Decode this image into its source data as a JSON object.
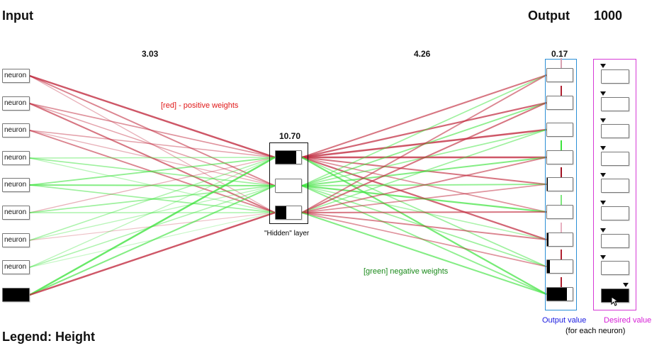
{
  "titles": {
    "input": "Input",
    "output": "Output",
    "iteration": "1000",
    "legend": "Legend: Height"
  },
  "layer_values": {
    "input_hidden": "3.03",
    "hidden_output": "4.26",
    "hidden": "10.70",
    "output": "0.17"
  },
  "annotations": {
    "positive": "[red] - positive weights",
    "negative": "[green] negative weights",
    "hidden_layer": "\"Hidden\" layer",
    "output_value": "Output value",
    "desired_value": "Desired value",
    "each_neuron": "(for each neuron)"
  },
  "colors": {
    "positive": "#c0283c",
    "negative": "#3ee33e",
    "output_frame": "#2b8fd6",
    "desired_frame": "#d63ad6",
    "output_label": "#1a1ae0",
    "desired_label": "#d61fd6",
    "positive_label": "#e01818",
    "negative_label": "#1a8a1a"
  },
  "input_neurons": [
    {
      "label": "neuron",
      "activation": 0.0
    },
    {
      "label": "neuron",
      "activation": 0.0
    },
    {
      "label": "neuron",
      "activation": 0.0
    },
    {
      "label": "neuron",
      "activation": 0.0
    },
    {
      "label": "neuron",
      "activation": 0.0
    },
    {
      "label": "neuron",
      "activation": 0.0
    },
    {
      "label": "neuron",
      "activation": 0.0
    },
    {
      "label": "neuron",
      "activation": 0.0
    },
    {
      "label": "",
      "activation": 1.0
    }
  ],
  "hidden_neurons": [
    {
      "activation": 0.8
    },
    {
      "activation": 0.0
    },
    {
      "activation": 0.42
    }
  ],
  "output_neurons": [
    {
      "activation": 0.0,
      "marker": "#d8a0b0"
    },
    {
      "activation": 0.0,
      "marker": "#b02030"
    },
    {
      "activation": 0.0,
      "marker": "#ffffff"
    },
    {
      "activation": 0.0,
      "marker": "#3ee33e"
    },
    {
      "activation": 0.04,
      "marker": "#a01020"
    },
    {
      "activation": 0.0,
      "marker": "#7ee87e"
    },
    {
      "activation": 0.06,
      "marker": "#e8b0c0"
    },
    {
      "activation": 0.12,
      "marker": "#b02030"
    },
    {
      "activation": 0.78,
      "marker": "#b02030"
    }
  ],
  "desired_values": [
    0.0,
    0.0,
    0.0,
    0.0,
    0.0,
    0.0,
    0.0,
    0.0,
    1.0
  ],
  "weights_input_hidden": [
    [
      0.9,
      0.6,
      0.3
    ],
    [
      0.5,
      0.4,
      0.7
    ],
    [
      0.4,
      0.3,
      0.6
    ],
    [
      -0.4,
      -0.5,
      -0.3
    ],
    [
      -0.6,
      -0.7,
      -0.5
    ],
    [
      0.3,
      -0.5,
      -0.4
    ],
    [
      -0.4,
      -0.3,
      0.2
    ],
    [
      -0.3,
      -0.4,
      -0.2
    ],
    [
      -0.9,
      -0.7,
      0.9
    ]
  ],
  "weights_hidden_output": [
    [
      0.7,
      0.8,
      0.9,
      0.9,
      0.7,
      0.5,
      0.8,
      -0.5,
      -0.8
    ],
    [
      -0.5,
      -0.6,
      -0.5,
      -0.7,
      -0.6,
      -0.8,
      -0.4,
      -0.5,
      -0.6
    ],
    [
      0.6,
      0.7,
      -0.5,
      0.6,
      0.5,
      0.7,
      0.6,
      0.5,
      -0.7
    ]
  ]
}
